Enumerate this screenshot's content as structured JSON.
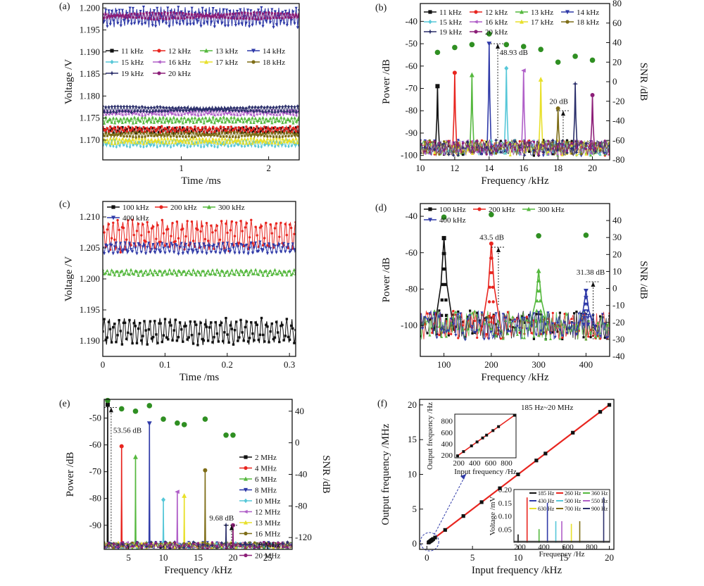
{
  "colors": {
    "series": [
      "#111111",
      "#e8251f",
      "#55b83e",
      "#2f3aa8",
      "#56c7d8",
      "#b05fc8",
      "#e8e02a",
      "#7e6d17",
      "#2b2f6b",
      "#8c1e78"
    ],
    "snr": "#2f8f22"
  },
  "chart_data": [
    {
      "panel": "(a)",
      "type": "line",
      "title": "",
      "xlabel": "Time /ms",
      "ylabel": "Voltage /V",
      "xlim": [
        0.1,
        2.35
      ],
      "ylim": [
        1.1655,
        1.201
      ],
      "xticks": [
        1,
        2
      ],
      "yticks": [
        1.17,
        1.175,
        1.18,
        1.185,
        1.19,
        1.195,
        1.2
      ],
      "ytick_labels": [
        "1.170",
        "1.175",
        "1.180",
        "1.185",
        "1.190",
        "1.195",
        "1.200"
      ],
      "legend": [
        "11 kHz",
        "12 kHz",
        "13 kHz",
        "14 kHz",
        "15 kHz",
        "16 kHz",
        "17 kHz",
        "18 kHz",
        "19 kHz",
        "20 kHz"
      ],
      "series": [
        {
          "name": "11 kHz",
          "mean": 1.1722,
          "amp": 0.0006
        },
        {
          "name": "12 kHz",
          "mean": 1.1724,
          "amp": 0.0006
        },
        {
          "name": "13 kHz",
          "mean": 1.1745,
          "amp": 0.0006
        },
        {
          "name": "14 kHz",
          "mean": 1.1979,
          "amp": 0.0019
        },
        {
          "name": "15 kHz",
          "mean": 1.1692,
          "amp": 0.0007
        },
        {
          "name": "16 kHz",
          "mean": 1.1762,
          "amp": 0.0006
        },
        {
          "name": "17 kHz",
          "mean": 1.1698,
          "amp": 0.0006
        },
        {
          "name": "18 kHz",
          "mean": 1.1712,
          "amp": 0.0005
        },
        {
          "name": "19 kHz",
          "mean": 1.177,
          "amp": 0.0006
        },
        {
          "name": "20 kHz",
          "mean": 1.1982,
          "amp": 0.0007
        }
      ]
    },
    {
      "panel": "(b)",
      "type": "line",
      "xlabel": "Frequency /kHz",
      "ylabel": "Power /dB",
      "y2label": "SNR /dB",
      "xlim": [
        10,
        21
      ],
      "ylim": [
        -102,
        -32
      ],
      "y2lim": [
        -80,
        80
      ],
      "xticks": [
        10,
        12,
        14,
        16,
        18,
        20
      ],
      "yticks": [
        -100,
        -90,
        -80,
        -70,
        -60,
        -50,
        -40
      ],
      "y2ticks": [
        -80,
        -60,
        -40,
        -20,
        0,
        20,
        40,
        60,
        80
      ],
      "legend": [
        "11 kHz",
        "12 kHz",
        "13 kHz",
        "14 kHz",
        "15 kHz",
        "16 kHz",
        "17 kHz",
        "18 kHz",
        "19 kHz",
        "20 kHz"
      ],
      "peaks": [
        {
          "name": "11 kHz",
          "x": 11,
          "y": -69
        },
        {
          "name": "12 kHz",
          "x": 12,
          "y": -63
        },
        {
          "name": "13 kHz",
          "x": 13,
          "y": -64
        },
        {
          "name": "14 kHz",
          "x": 14,
          "y": -50
        },
        {
          "name": "15 kHz",
          "x": 15,
          "y": -61
        },
        {
          "name": "16 kHz",
          "x": 16,
          "y": -62
        },
        {
          "name": "17 kHz",
          "x": 17,
          "y": -66
        },
        {
          "name": "18 kHz",
          "x": 18,
          "y": -79
        },
        {
          "name": "19 kHz",
          "x": 19,
          "y": -68
        },
        {
          "name": "20 kHz",
          "x": 20,
          "y": -73
        }
      ],
      "noise_floor": -98,
      "snr_points": [
        {
          "x": 11,
          "y": 30
        },
        {
          "x": 12,
          "y": 35
        },
        {
          "x": 13,
          "y": 38
        },
        {
          "x": 14,
          "y": 48.93
        },
        {
          "x": 15,
          "y": 38
        },
        {
          "x": 16,
          "y": 36
        },
        {
          "x": 17,
          "y": 33
        },
        {
          "x": 18,
          "y": 20
        },
        {
          "x": 19,
          "y": 26
        },
        {
          "x": 20,
          "y": 22
        }
      ],
      "annotations": [
        "48.93 dB",
        "20 dB"
      ]
    },
    {
      "panel": "(c)",
      "type": "line",
      "xlabel": "Time /ms",
      "ylabel": "Voltage /V",
      "xlim": [
        0,
        0.31
      ],
      "ylim": [
        1.1875,
        1.2125
      ],
      "xticks": [
        0,
        0.1,
        0.2,
        0.3
      ],
      "xtick_labels": [
        "0",
        "0.1",
        "0.2",
        "0.3"
      ],
      "yticks": [
        1.19,
        1.195,
        1.2,
        1.205,
        1.21
      ],
      "ytick_labels": [
        "1.190",
        "1.195",
        "1.200",
        "1.205",
        "1.210"
      ],
      "legend": [
        "100 kHz",
        "200 kHz",
        "300 kHz",
        "400 kHz"
      ],
      "series": [
        {
          "name": "100 kHz",
          "mean": 1.1915,
          "amp": 0.0018
        },
        {
          "name": "200 kHz",
          "mean": 1.207,
          "amp": 0.0022
        },
        {
          "name": "300 kHz",
          "mean": 1.201,
          "amp": 0.0004
        },
        {
          "name": "400 kHz",
          "mean": 1.205,
          "amp": 0.0008
        }
      ]
    },
    {
      "panel": "(d)",
      "type": "line",
      "xlabel": "Frequency /kHz",
      "ylabel": "Power /dB",
      "y2label": "SNR /dB",
      "xlim": [
        50,
        450
      ],
      "ylim": [
        -117,
        -33
      ],
      "y2lim": [
        -40,
        50
      ],
      "xticks": [
        100,
        200,
        300,
        400
      ],
      "yticks": [
        -100,
        -80,
        -60,
        -40
      ],
      "y2ticks": [
        -40,
        -30,
        -20,
        -10,
        0,
        10,
        20,
        30,
        40
      ],
      "legend": [
        "100 kHz",
        "200 kHz",
        "300 kHz",
        "400 kHz"
      ],
      "peaks": [
        {
          "name": "100 kHz",
          "x": 100,
          "y": -52
        },
        {
          "name": "200 kHz",
          "x": 200,
          "y": -55
        },
        {
          "name": "300 kHz",
          "x": 300,
          "y": -70
        },
        {
          "name": "400 kHz",
          "x": 400,
          "y": -81
        }
      ],
      "noise_floor": -103,
      "snr_points": [
        {
          "x": 100,
          "y": 42
        },
        {
          "x": 200,
          "y": 43.5
        },
        {
          "x": 300,
          "y": 31
        },
        {
          "x": 400,
          "y": 31.38
        }
      ],
      "annotations": [
        "43.5 dB",
        "31.38 dB"
      ]
    },
    {
      "panel": "(e)",
      "type": "line",
      "xlabel": "Frequency /kHz",
      "ylabel": "Power /dB",
      "y2label": "SNR /dB",
      "xlim": [
        1.5,
        28.5
      ],
      "ylim": [
        -99,
        -43
      ],
      "y2lim": [
        -135,
        55
      ],
      "xticks": [
        5,
        10,
        15,
        20,
        25
      ],
      "yticks": [
        -90,
        -80,
        -70,
        -60,
        -50
      ],
      "y2ticks": [
        -120,
        -80,
        -40,
        0,
        40
      ],
      "legend": [
        "2 MHz",
        "4 MHz",
        "6 MHz",
        "8 MHz",
        "10 MHz",
        "12 MHz",
        "13 MHz",
        "16 MHz",
        "19 MHz",
        "20 MHz"
      ],
      "peaks": [
        {
          "name": "2 MHz",
          "x": 2,
          "y": -45
        },
        {
          "name": "4 MHz",
          "x": 4,
          "y": -60.5
        },
        {
          "name": "6 MHz",
          "x": 6,
          "y": -64.5
        },
        {
          "name": "8 MHz",
          "x": 8,
          "y": -52
        },
        {
          "name": "10 MHz",
          "x": 10,
          "y": -80.5
        },
        {
          "name": "12 MHz",
          "x": 12,
          "y": -77.5
        },
        {
          "name": "13 MHz",
          "x": 13,
          "y": -79
        },
        {
          "name": "16 MHz",
          "x": 16,
          "y": -69.5
        },
        {
          "name": "19 MHz",
          "x": 19,
          "y": -90
        },
        {
          "name": "20 MHz",
          "x": 20,
          "y": -90
        }
      ],
      "noise_floor": -98,
      "snr_points": [
        {
          "x": 2,
          "y": 53.56
        },
        {
          "x": 4,
          "y": 43
        },
        {
          "x": 6,
          "y": 40
        },
        {
          "x": 8,
          "y": 47
        },
        {
          "x": 10,
          "y": 30
        },
        {
          "x": 12,
          "y": 25
        },
        {
          "x": 13,
          "y": 23
        },
        {
          "x": 16,
          "y": 30
        },
        {
          "x": 19,
          "y": 9.68
        },
        {
          "x": 20,
          "y": 9.68
        }
      ],
      "annotations": [
        "53.56 dB",
        "9.68 dB"
      ]
    },
    {
      "panel": "(f)",
      "type": "line",
      "xlabel": "Input frequency /kHz",
      "ylabel": "Output frequency /MHz",
      "xlim": [
        -0.8,
        20.5
      ],
      "ylim": [
        -0.8,
        20.8
      ],
      "xticks": [
        0,
        5,
        10,
        15,
        20
      ],
      "yticks": [
        0,
        5,
        10,
        15,
        20
      ],
      "annotation": "185 Hz~20 MHz",
      "x": [
        0.185,
        0.26,
        0.36,
        0.43,
        0.5,
        0.55,
        0.63,
        0.7,
        0.9,
        2,
        4,
        6,
        8,
        10,
        12,
        13,
        16,
        19,
        20
      ],
      "y": [
        0.185,
        0.26,
        0.36,
        0.43,
        0.5,
        0.55,
        0.63,
        0.7,
        0.9,
        2,
        4,
        6,
        8,
        10,
        12,
        13,
        16,
        19,
        20
      ],
      "inset_top": {
        "xlabel": "Input frequency /Hz",
        "ylabel": "Output frequency /Hz",
        "xlim": [
          150,
          920
        ],
        "ylim": [
          150,
          920
        ],
        "xticks": [
          200,
          400,
          600,
          800
        ],
        "yticks": [
          200,
          400,
          600,
          800
        ],
        "x": [
          185,
          260,
          360,
          430,
          500,
          550,
          630,
          700,
          900
        ],
        "y": [
          185,
          260,
          360,
          430,
          500,
          550,
          630,
          700,
          900
        ]
      },
      "inset_bottom": {
        "xlabel": "Frequency /Hz",
        "ylabel": "Voltage /mV",
        "xlim": [
          150,
          950
        ],
        "ylim": [
          0,
          0.2
        ],
        "xticks": [
          200,
          400,
          600,
          800
        ],
        "yticks": [
          0.05,
          0.1,
          0.15,
          0.2
        ],
        "ytick_labels": [
          "0.05",
          "0.10",
          "0.15",
          "0.20"
        ],
        "legend": [
          "185 Hz",
          "260 Hz",
          "360 Hz",
          "430 Hz",
          "500 Hz",
          "550 Hz",
          "630 Hz",
          "700 Hz",
          "900 Hz"
        ],
        "peaks": [
          {
            "name": "185 Hz",
            "x": 185,
            "y": 0.03
          },
          {
            "name": "260 Hz",
            "x": 260,
            "y": 0.17
          },
          {
            "name": "360 Hz",
            "x": 360,
            "y": 0.05
          },
          {
            "name": "430 Hz",
            "x": 430,
            "y": 0.15
          },
          {
            "name": "500 Hz",
            "x": 500,
            "y": 0.08
          },
          {
            "name": "550 Hz",
            "x": 550,
            "y": 0.08
          },
          {
            "name": "630 Hz",
            "x": 630,
            "y": 0.07
          },
          {
            "name": "700 Hz",
            "x": 700,
            "y": 0.08
          },
          {
            "name": "900 Hz",
            "x": 900,
            "y": 0.17
          }
        ]
      }
    }
  ]
}
